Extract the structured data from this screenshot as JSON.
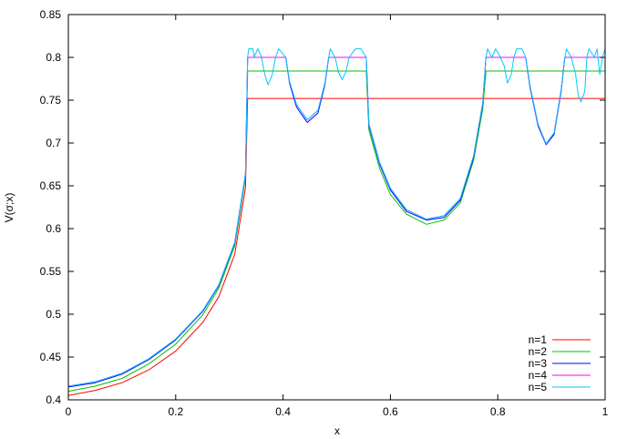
{
  "chart_data": {
    "type": "line",
    "title": "",
    "xlabel": "x",
    "ylabel": "V(σ;x)",
    "xlim": [
      0,
      1
    ],
    "ylim": [
      0.4,
      0.85
    ],
    "grid": false,
    "legend_position": "bottom-right",
    "x_ticks": [
      "0",
      "0.2",
      "0.4",
      "0.6",
      "0.8",
      "1"
    ],
    "y_ticks": [
      "0.4",
      "0.45",
      "0.5",
      "0.55",
      "0.6",
      "0.65",
      "0.7",
      "0.75",
      "0.8",
      "0.85"
    ],
    "series": [
      {
        "name": "n=1",
        "color": "#ff0000",
        "points": [
          [
            0,
            0.405
          ],
          [
            0.05,
            0.411
          ],
          [
            0.1,
            0.42
          ],
          [
            0.15,
            0.435
          ],
          [
            0.2,
            0.457
          ],
          [
            0.25,
            0.49
          ],
          [
            0.28,
            0.52
          ],
          [
            0.31,
            0.57
          ],
          [
            0.33,
            0.648
          ],
          [
            0.334,
            0.752
          ],
          [
            0.4,
            0.752
          ],
          [
            0.5,
            0.752
          ],
          [
            0.6,
            0.752
          ],
          [
            0.7,
            0.752
          ],
          [
            0.8,
            0.752
          ],
          [
            0.9,
            0.752
          ],
          [
            1.0,
            0.752
          ]
        ]
      },
      {
        "name": "n=2",
        "color": "#00c000",
        "points": [
          [
            0,
            0.41
          ],
          [
            0.05,
            0.416
          ],
          [
            0.1,
            0.425
          ],
          [
            0.15,
            0.442
          ],
          [
            0.2,
            0.465
          ],
          [
            0.25,
            0.499
          ],
          [
            0.28,
            0.53
          ],
          [
            0.31,
            0.58
          ],
          [
            0.33,
            0.66
          ],
          [
            0.334,
            0.784
          ],
          [
            0.4,
            0.784
          ],
          [
            0.5,
            0.784
          ],
          [
            0.555,
            0.784
          ],
          [
            0.56,
            0.715
          ],
          [
            0.58,
            0.67
          ],
          [
            0.6,
            0.64
          ],
          [
            0.63,
            0.617
          ],
          [
            0.667,
            0.605
          ],
          [
            0.7,
            0.61
          ],
          [
            0.73,
            0.63
          ],
          [
            0.755,
            0.68
          ],
          [
            0.772,
            0.74
          ],
          [
            0.778,
            0.784
          ],
          [
            0.85,
            0.784
          ],
          [
            0.9,
            0.784
          ],
          [
            0.95,
            0.784
          ],
          [
            1.0,
            0.784
          ]
        ]
      },
      {
        "name": "n=3",
        "color": "#0000ff",
        "points": [
          [
            0,
            0.415
          ],
          [
            0.05,
            0.42
          ],
          [
            0.1,
            0.43
          ],
          [
            0.15,
            0.447
          ],
          [
            0.2,
            0.47
          ],
          [
            0.25,
            0.503
          ],
          [
            0.28,
            0.533
          ],
          [
            0.31,
            0.583
          ],
          [
            0.33,
            0.663
          ],
          [
            0.334,
            0.8
          ],
          [
            0.405,
            0.8
          ],
          [
            0.412,
            0.77
          ],
          [
            0.425,
            0.742
          ],
          [
            0.445,
            0.724
          ],
          [
            0.465,
            0.735
          ],
          [
            0.478,
            0.768
          ],
          [
            0.485,
            0.8
          ],
          [
            0.555,
            0.8
          ],
          [
            0.56,
            0.72
          ],
          [
            0.58,
            0.675
          ],
          [
            0.6,
            0.645
          ],
          [
            0.63,
            0.62
          ],
          [
            0.667,
            0.61
          ],
          [
            0.7,
            0.613
          ],
          [
            0.73,
            0.633
          ],
          [
            0.755,
            0.683
          ],
          [
            0.772,
            0.745
          ],
          [
            0.778,
            0.8
          ],
          [
            0.852,
            0.8
          ],
          [
            0.86,
            0.765
          ],
          [
            0.875,
            0.72
          ],
          [
            0.89,
            0.698
          ],
          [
            0.905,
            0.71
          ],
          [
            0.918,
            0.76
          ],
          [
            0.925,
            0.8
          ],
          [
            1.0,
            0.8
          ]
        ]
      },
      {
        "name": "n=4",
        "color": "#ff00ff",
        "points": [
          [
            0,
            0.416
          ],
          [
            0.05,
            0.421
          ],
          [
            0.1,
            0.431
          ],
          [
            0.15,
            0.448
          ],
          [
            0.2,
            0.471
          ],
          [
            0.25,
            0.504
          ],
          [
            0.28,
            0.534
          ],
          [
            0.31,
            0.584
          ],
          [
            0.33,
            0.664
          ],
          [
            0.334,
            0.8
          ],
          [
            0.405,
            0.8
          ],
          [
            0.412,
            0.772
          ],
          [
            0.425,
            0.745
          ],
          [
            0.445,
            0.727
          ],
          [
            0.465,
            0.738
          ],
          [
            0.478,
            0.77
          ],
          [
            0.485,
            0.8
          ],
          [
            0.555,
            0.8
          ],
          [
            0.56,
            0.722
          ],
          [
            0.58,
            0.677
          ],
          [
            0.6,
            0.647
          ],
          [
            0.63,
            0.622
          ],
          [
            0.667,
            0.611
          ],
          [
            0.7,
            0.615
          ],
          [
            0.73,
            0.635
          ],
          [
            0.755,
            0.685
          ],
          [
            0.772,
            0.747
          ],
          [
            0.778,
            0.8
          ],
          [
            0.852,
            0.8
          ],
          [
            0.86,
            0.767
          ],
          [
            0.875,
            0.722
          ],
          [
            0.89,
            0.699
          ],
          [
            0.905,
            0.712
          ],
          [
            0.918,
            0.762
          ],
          [
            0.925,
            0.8
          ],
          [
            1.0,
            0.8
          ]
        ]
      },
      {
        "name": "n=5",
        "color": "#00c8ff",
        "points": [
          [
            0,
            0.416
          ],
          [
            0.05,
            0.421
          ],
          [
            0.1,
            0.431
          ],
          [
            0.15,
            0.448
          ],
          [
            0.2,
            0.471
          ],
          [
            0.25,
            0.504
          ],
          [
            0.28,
            0.534
          ],
          [
            0.31,
            0.584
          ],
          [
            0.33,
            0.664
          ],
          [
            0.334,
            0.8
          ],
          [
            0.336,
            0.81
          ],
          [
            0.344,
            0.81
          ],
          [
            0.346,
            0.8
          ],
          [
            0.353,
            0.81
          ],
          [
            0.36,
            0.8
          ],
          [
            0.366,
            0.78
          ],
          [
            0.372,
            0.768
          ],
          [
            0.38,
            0.78
          ],
          [
            0.386,
            0.8
          ],
          [
            0.392,
            0.81
          ],
          [
            0.405,
            0.8
          ],
          [
            0.412,
            0.772
          ],
          [
            0.425,
            0.745
          ],
          [
            0.445,
            0.727
          ],
          [
            0.465,
            0.738
          ],
          [
            0.478,
            0.77
          ],
          [
            0.485,
            0.8
          ],
          [
            0.488,
            0.81
          ],
          [
            0.497,
            0.8
          ],
          [
            0.503,
            0.783
          ],
          [
            0.51,
            0.774
          ],
          [
            0.517,
            0.783
          ],
          [
            0.523,
            0.8
          ],
          [
            0.535,
            0.81
          ],
          [
            0.545,
            0.81
          ],
          [
            0.555,
            0.8
          ],
          [
            0.56,
            0.722
          ],
          [
            0.58,
            0.677
          ],
          [
            0.6,
            0.647
          ],
          [
            0.63,
            0.622
          ],
          [
            0.667,
            0.611
          ],
          [
            0.7,
            0.615
          ],
          [
            0.73,
            0.635
          ],
          [
            0.755,
            0.685
          ],
          [
            0.772,
            0.747
          ],
          [
            0.778,
            0.8
          ],
          [
            0.781,
            0.81
          ],
          [
            0.789,
            0.8
          ],
          [
            0.796,
            0.81
          ],
          [
            0.805,
            0.8
          ],
          [
            0.812,
            0.79
          ],
          [
            0.818,
            0.77
          ],
          [
            0.825,
            0.78
          ],
          [
            0.83,
            0.8
          ],
          [
            0.835,
            0.81
          ],
          [
            0.845,
            0.81
          ],
          [
            0.852,
            0.8
          ],
          [
            0.86,
            0.767
          ],
          [
            0.875,
            0.722
          ],
          [
            0.89,
            0.699
          ],
          [
            0.905,
            0.712
          ],
          [
            0.918,
            0.762
          ],
          [
            0.925,
            0.8
          ],
          [
            0.928,
            0.81
          ],
          [
            0.937,
            0.8
          ],
          [
            0.945,
            0.78
          ],
          [
            0.95,
            0.755
          ],
          [
            0.955,
            0.748
          ],
          [
            0.962,
            0.76
          ],
          [
            0.966,
            0.8
          ],
          [
            0.97,
            0.81
          ],
          [
            0.98,
            0.8
          ],
          [
            0.985,
            0.81
          ],
          [
            0.99,
            0.78
          ],
          [
            0.995,
            0.8
          ],
          [
            1.0,
            0.81
          ]
        ]
      }
    ]
  }
}
